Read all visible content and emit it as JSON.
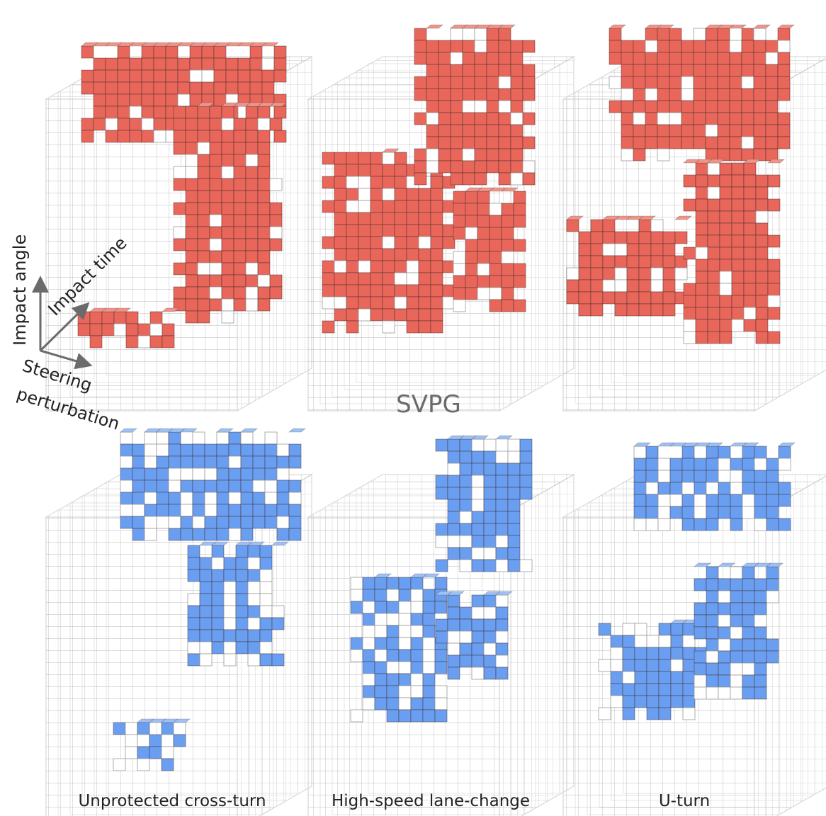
{
  "method_label": "SVPG",
  "axes": {
    "vertical": "Impact angle",
    "depth": "Impact time",
    "horizontal_line1": "Steering",
    "horizontal_line2": "perturbation"
  },
  "scenarios": [
    "Unprotected cross-turn",
    "High-speed lane-change",
    "U-turn"
  ],
  "colors": {
    "top_row_failures": "#e8665a",
    "bottom_row_failures": "#6a9ef0",
    "grid_line": "#b9b9b9",
    "empty_cell": "#ffffff",
    "axis_arrow": "#6b6b6b"
  },
  "rows": [
    {
      "row": "top",
      "color_key": "top_row_failures"
    },
    {
      "row": "bottom",
      "color_key": "bottom_row_failures"
    }
  ]
}
